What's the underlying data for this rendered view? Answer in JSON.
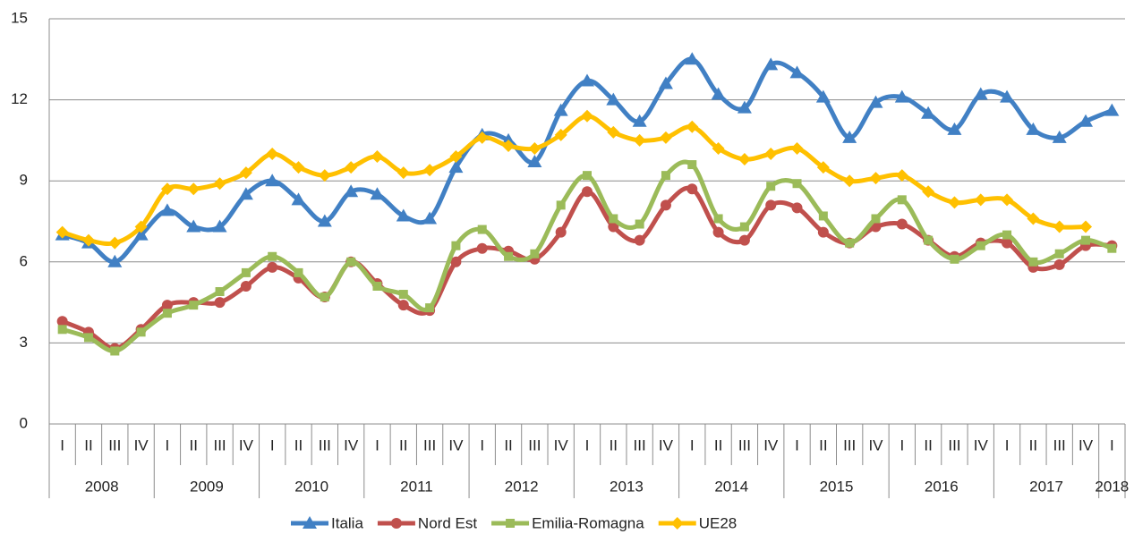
{
  "chart_data": {
    "type": "line",
    "categories": [
      "I",
      "II",
      "III",
      "IV",
      "I",
      "II",
      "III",
      "IV",
      "I",
      "II",
      "III",
      "IV",
      "I",
      "II",
      "III",
      "IV",
      "I",
      "II",
      "III",
      "IV",
      "I",
      "II",
      "III",
      "IV",
      "I",
      "II",
      "III",
      "IV",
      "I",
      "II",
      "III",
      "IV",
      "I",
      "II",
      "III",
      "IV",
      "I",
      "II",
      "III",
      "IV",
      "I"
    ],
    "years": [
      "2008",
      "2009",
      "2010",
      "2011",
      "2012",
      "2013",
      "2014",
      "2015",
      "2016",
      "2017",
      "2018"
    ],
    "ylim": [
      0,
      15
    ],
    "yticks": [
      0,
      3,
      6,
      9,
      12,
      15
    ],
    "grid": true,
    "legend": "bottom",
    "smooth": true,
    "series": [
      {
        "name": "Italia",
        "color": "#4180c4",
        "marker": "triangle",
        "values": [
          7.0,
          6.7,
          6.0,
          7.0,
          7.9,
          7.3,
          7.3,
          8.5,
          9.0,
          8.3,
          7.5,
          8.6,
          8.5,
          7.7,
          7.6,
          9.5,
          10.7,
          10.5,
          9.7,
          11.6,
          12.7,
          12.0,
          11.2,
          12.6,
          13.5,
          12.2,
          11.7,
          13.3,
          13.0,
          12.1,
          10.6,
          11.9,
          12.1,
          11.5,
          10.9,
          12.2,
          12.1,
          10.9,
          10.6,
          11.2,
          11.6
        ]
      },
      {
        "name": "Nord Est",
        "color": "#c0504d",
        "marker": "circle",
        "values": [
          3.8,
          3.4,
          2.8,
          3.5,
          4.4,
          4.5,
          4.5,
          5.1,
          5.8,
          5.4,
          4.7,
          6.0,
          5.2,
          4.4,
          4.2,
          6.0,
          6.5,
          6.4,
          6.1,
          7.1,
          8.6,
          7.3,
          6.8,
          8.1,
          8.7,
          7.1,
          6.8,
          8.1,
          8.0,
          7.1,
          6.7,
          7.3,
          7.4,
          6.8,
          6.2,
          6.7,
          6.7,
          5.8,
          5.9,
          6.6,
          6.6
        ]
      },
      {
        "name": "Emilia-Romagna",
        "color": "#9bbb59",
        "marker": "square",
        "values": [
          3.5,
          3.2,
          2.7,
          3.4,
          4.1,
          4.4,
          4.9,
          5.6,
          6.2,
          5.6,
          4.7,
          6.0,
          5.1,
          4.8,
          4.3,
          6.6,
          7.2,
          6.2,
          6.3,
          8.1,
          9.2,
          7.6,
          7.4,
          9.2,
          9.6,
          7.6,
          7.3,
          8.8,
          8.9,
          7.7,
          6.7,
          7.6,
          8.3,
          6.8,
          6.1,
          6.6,
          7.0,
          6.0,
          6.3,
          6.8,
          6.5
        ]
      },
      {
        "name": "UE28",
        "color": "#ffc000",
        "marker": "diamond",
        "values": [
          7.1,
          6.8,
          6.7,
          7.3,
          8.7,
          8.7,
          8.9,
          9.3,
          10.0,
          9.5,
          9.2,
          9.5,
          9.9,
          9.3,
          9.4,
          9.9,
          10.6,
          10.3,
          10.2,
          10.7,
          11.4,
          10.8,
          10.5,
          10.6,
          11.0,
          10.2,
          9.8,
          10.0,
          10.2,
          9.5,
          9.0,
          9.1,
          9.2,
          8.6,
          8.2,
          8.3,
          8.3,
          7.6,
          7.3,
          7.3,
          null
        ]
      }
    ]
  }
}
